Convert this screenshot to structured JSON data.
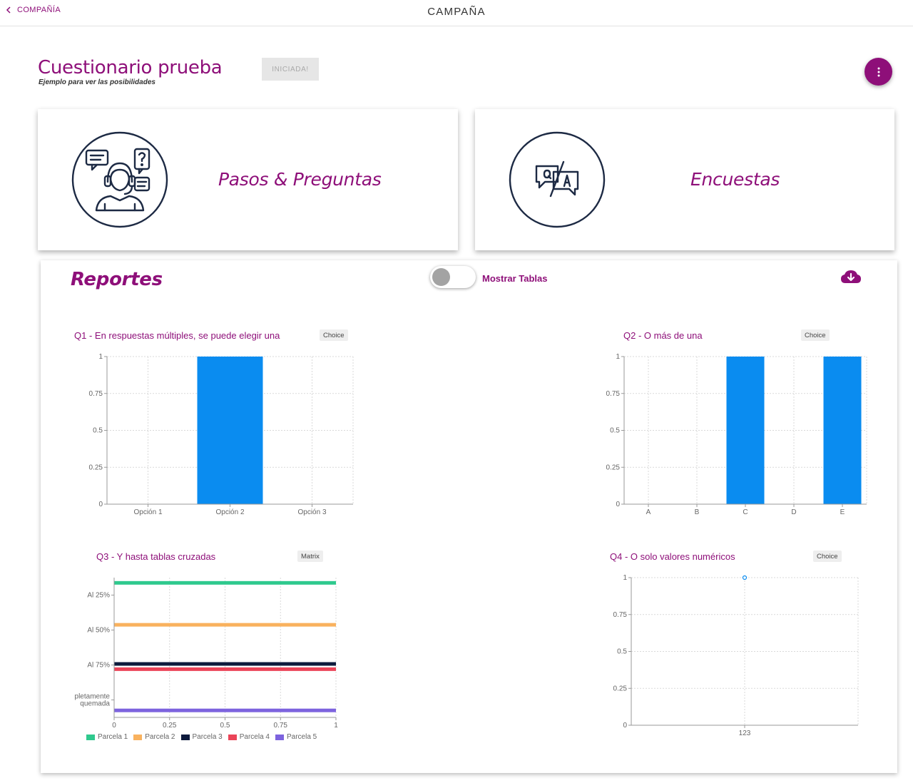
{
  "header": {
    "back_label": "COMPAÑÍA",
    "title": "CAMPAÑA"
  },
  "campaign": {
    "title": "Cuestionario prueba",
    "subtitle": "Ejemplo para ver las posibilidades",
    "status": "INICIADA!"
  },
  "cards": {
    "steps_label": "Pasos & Preguntas",
    "surveys_label": "Encuestas"
  },
  "reports": {
    "title": "Reportes",
    "toggle_label": "Mostrar Tablas"
  },
  "colors": {
    "brand": "#8e0f79",
    "bar": "#0a8cf0",
    "icon_stroke": "#1d2a44"
  },
  "questions": [
    {
      "title": "Q1 - En respuestas múltiples, se puede elegir una",
      "type": "Choice"
    },
    {
      "title": "Q2 - O más de una",
      "type": "Choice"
    },
    {
      "title": "Q3 - Y hasta tablas cruzadas",
      "type": "Matrix"
    },
    {
      "title": "Q4 - O solo valores numéricos",
      "type": "Choice"
    }
  ],
  "chart_data": [
    {
      "type": "bar",
      "categories": [
        "Opción 1",
        "Opción 2",
        "Opción 3"
      ],
      "values": [
        0,
        1,
        0
      ],
      "ylim": [
        0,
        1
      ],
      "yticks": [
        "0",
        "0.25",
        "0.5",
        "0.75",
        "1"
      ],
      "grid": true
    },
    {
      "type": "bar",
      "categories": [
        "A",
        "B",
        "C",
        "D",
        "E"
      ],
      "values": [
        0,
        0,
        1,
        0,
        1
      ],
      "ylim": [
        0,
        1
      ],
      "yticks": [
        "0",
        "0.25",
        "0.5",
        "0.75",
        "1"
      ],
      "grid": true
    },
    {
      "type": "bar",
      "orientation": "horizontal",
      "categories": [
        "Al 25%",
        "Al 50%",
        "Al 75%",
        "pletamente quemada"
      ],
      "category_lines": [
        [
          "Al 25%"
        ],
        [
          "Al 50%"
        ],
        [
          "Al 75%"
        ],
        [
          "pletamente",
          "quemada"
        ]
      ],
      "xlim": [
        0,
        1
      ],
      "xticks": [
        "0",
        "0.25",
        "0.5",
        "0.75",
        "1"
      ],
      "legend_position": "bottom",
      "series": [
        {
          "name": "Parcela 1",
          "color": "#2fc98e",
          "values": [
            1,
            0,
            0,
            0
          ]
        },
        {
          "name": "Parcela 2",
          "color": "#f9b25e",
          "values": [
            0,
            1,
            0,
            0
          ]
        },
        {
          "name": "Parcela 3",
          "color": "#0d1a3c",
          "values": [
            0,
            0,
            1,
            0
          ]
        },
        {
          "name": "Parcela 4",
          "color": "#eb4458",
          "values": [
            0,
            0,
            1,
            0
          ]
        },
        {
          "name": "Parcela 5",
          "color": "#7d63de",
          "values": [
            0,
            0,
            0,
            1
          ]
        }
      ]
    },
    {
      "type": "scatter",
      "categories": [
        "123"
      ],
      "values": [
        1
      ],
      "ylim": [
        0,
        1
      ],
      "yticks": [
        "0",
        "0.25",
        "0.5",
        "0.75",
        "1"
      ],
      "grid": true
    }
  ]
}
